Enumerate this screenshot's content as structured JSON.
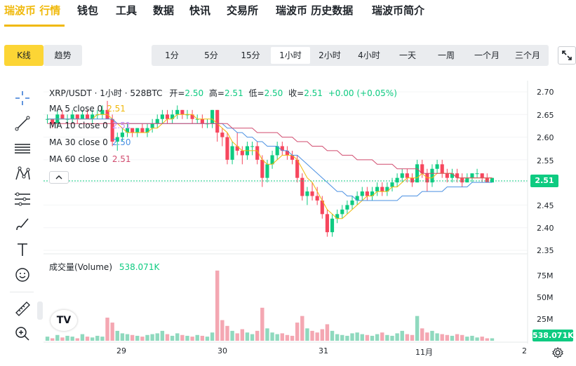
{
  "nav": {
    "items": [
      "瑞波币 行情",
      "钱包",
      "工具",
      "数据",
      "快讯",
      "交易所",
      "瑞波币 历史数据",
      "瑞波币简介"
    ],
    "active_index": 0,
    "accent": "#f0b90b"
  },
  "chart_type_tabs": [
    "K线",
    "趋势"
  ],
  "active_chart_type": "K线",
  "intervals": [
    "1分",
    "5分",
    "15分",
    "1小时",
    "2小时",
    "4小时",
    "一天",
    "一周",
    "一个月",
    "三个月"
  ],
  "active_interval": "1小时",
  "toolbar": {
    "icons": [
      "crosshair-icon",
      "trend-line-icon",
      "horizontal-lines-icon",
      "pattern-icon",
      "fib-icon",
      "brush-icon",
      "text-icon",
      "emoji-icon",
      "ruler-icon",
      "zoom-in-icon"
    ]
  },
  "header": {
    "symbol": "XRP/USDT · 1小时 · 528BTC",
    "open_label": "开=",
    "open": "2.50",
    "high_label": "高=",
    "high": "2.51",
    "low_label": "低=",
    "low": "2.50",
    "close_label": "收=",
    "close": "2.51",
    "change": "+0.00 (+0.05%)"
  },
  "ma": [
    {
      "label": "MA 5 close 0",
      "value": "2.51",
      "color": "#f0b90b"
    },
    {
      "label": "MA 10 close 0",
      "value": "2.51",
      "color": "#c58cf8"
    },
    {
      "label": "MA 30 close 0",
      "value": "2.50",
      "color": "#4a90e2"
    },
    {
      "label": "MA 60 close 0",
      "value": "2.51",
      "color": "#d14b6e"
    }
  ],
  "price_axis": [
    "2.70",
    "2.65",
    "2.60",
    "2.55",
    "2.50",
    "2.45",
    "2.40",
    "2.35"
  ],
  "last_price": "2.51",
  "volume": {
    "title": "成交量(Volume)",
    "value": "538.071K",
    "axis": [
      "75M",
      "50M",
      "25M"
    ],
    "tag": "538.071K"
  },
  "time_axis": [
    "29",
    "30",
    "31",
    "11月",
    "2"
  ],
  "tv_logo": "TV",
  "colors": {
    "up": "#0ecb81",
    "down": "#f6465d",
    "up_vol": "#8fd9be",
    "down_vol": "#f4a7b2"
  },
  "chart_data": {
    "type": "candlestick",
    "interval": "1小时",
    "ylim": [
      2.35,
      2.7
    ],
    "x_ticks": [
      "29",
      "30",
      "31",
      "11月",
      "2"
    ],
    "candles": [
      [
        2.64,
        2.65,
        2.63,
        2.64
      ],
      [
        2.64,
        2.64,
        2.62,
        2.63
      ],
      [
        2.63,
        2.66,
        2.62,
        2.65
      ],
      [
        2.65,
        2.66,
        2.64,
        2.64
      ],
      [
        2.64,
        2.65,
        2.63,
        2.64
      ],
      [
        2.64,
        2.66,
        2.63,
        2.65
      ],
      [
        2.65,
        2.65,
        2.63,
        2.64
      ],
      [
        2.64,
        2.66,
        2.64,
        2.65
      ],
      [
        2.65,
        2.66,
        2.64,
        2.64
      ],
      [
        2.64,
        2.66,
        2.63,
        2.65
      ],
      [
        2.65,
        2.66,
        2.64,
        2.65
      ],
      [
        2.65,
        2.67,
        2.64,
        2.66
      ],
      [
        2.66,
        2.68,
        2.64,
        2.64
      ],
      [
        2.64,
        2.65,
        2.58,
        2.59
      ],
      [
        2.59,
        2.61,
        2.57,
        2.6
      ],
      [
        2.6,
        2.62,
        2.59,
        2.61
      ],
      [
        2.61,
        2.63,
        2.6,
        2.62
      ],
      [
        2.62,
        2.62,
        2.6,
        2.61
      ],
      [
        2.61,
        2.62,
        2.6,
        2.62
      ],
      [
        2.62,
        2.63,
        2.61,
        2.61
      ],
      [
        2.61,
        2.63,
        2.6,
        2.62
      ],
      [
        2.62,
        2.64,
        2.61,
        2.63
      ],
      [
        2.63,
        2.65,
        2.62,
        2.64
      ],
      [
        2.64,
        2.66,
        2.63,
        2.65
      ],
      [
        2.65,
        2.66,
        2.63,
        2.64
      ],
      [
        2.64,
        2.66,
        2.63,
        2.65
      ],
      [
        2.65,
        2.67,
        2.64,
        2.66
      ],
      [
        2.66,
        2.66,
        2.64,
        2.65
      ],
      [
        2.65,
        2.66,
        2.64,
        2.65
      ],
      [
        2.65,
        2.66,
        2.63,
        2.64
      ],
      [
        2.64,
        2.65,
        2.63,
        2.64
      ],
      [
        2.64,
        2.65,
        2.62,
        2.63
      ],
      [
        2.63,
        2.64,
        2.62,
        2.63
      ],
      [
        2.63,
        2.66,
        2.62,
        2.66
      ],
      [
        2.66,
        2.66,
        2.59,
        2.61
      ],
      [
        2.61,
        2.62,
        2.58,
        2.6
      ],
      [
        2.6,
        2.61,
        2.54,
        2.55
      ],
      [
        2.55,
        2.59,
        2.54,
        2.58
      ],
      [
        2.58,
        2.61,
        2.56,
        2.57
      ],
      [
        2.57,
        2.58,
        2.54,
        2.56
      ],
      [
        2.56,
        2.59,
        2.55,
        2.58
      ],
      [
        2.58,
        2.59,
        2.56,
        2.58
      ],
      [
        2.58,
        2.59,
        2.54,
        2.55
      ],
      [
        2.55,
        2.56,
        2.49,
        2.51
      ],
      [
        2.51,
        2.55,
        2.5,
        2.54
      ],
      [
        2.54,
        2.57,
        2.53,
        2.56
      ],
      [
        2.56,
        2.59,
        2.55,
        2.58
      ],
      [
        2.58,
        2.59,
        2.56,
        2.57
      ],
      [
        2.57,
        2.58,
        2.55,
        2.56
      ],
      [
        2.56,
        2.57,
        2.54,
        2.55
      ],
      [
        2.55,
        2.56,
        2.5,
        2.51
      ],
      [
        2.51,
        2.52,
        2.46,
        2.47
      ],
      [
        2.47,
        2.49,
        2.45,
        2.48
      ],
      [
        2.48,
        2.5,
        2.46,
        2.47
      ],
      [
        2.47,
        2.49,
        2.45,
        2.46
      ],
      [
        2.46,
        2.47,
        2.42,
        2.43
      ],
      [
        2.43,
        2.44,
        2.38,
        2.39
      ],
      [
        2.39,
        2.43,
        2.38,
        2.42
      ],
      [
        2.42,
        2.44,
        2.41,
        2.43
      ],
      [
        2.43,
        2.45,
        2.42,
        2.44
      ],
      [
        2.44,
        2.46,
        2.43,
        2.45
      ],
      [
        2.45,
        2.47,
        2.44,
        2.46
      ],
      [
        2.46,
        2.48,
        2.45,
        2.47
      ],
      [
        2.47,
        2.49,
        2.46,
        2.48
      ],
      [
        2.48,
        2.49,
        2.46,
        2.47
      ],
      [
        2.47,
        2.49,
        2.46,
        2.48
      ],
      [
        2.48,
        2.5,
        2.47,
        2.49
      ],
      [
        2.49,
        2.5,
        2.47,
        2.48
      ],
      [
        2.48,
        2.5,
        2.47,
        2.49
      ],
      [
        2.49,
        2.51,
        2.48,
        2.5
      ],
      [
        2.5,
        2.52,
        2.49,
        2.51
      ],
      [
        2.51,
        2.53,
        2.5,
        2.52
      ],
      [
        2.52,
        2.53,
        2.5,
        2.51
      ],
      [
        2.51,
        2.52,
        2.49,
        2.5
      ],
      [
        2.5,
        2.55,
        2.5,
        2.54
      ],
      [
        2.54,
        2.55,
        2.51,
        2.52
      ],
      [
        2.52,
        2.53,
        2.48,
        2.5
      ],
      [
        2.5,
        2.54,
        2.49,
        2.53
      ],
      [
        2.53,
        2.55,
        2.52,
        2.54
      ],
      [
        2.54,
        2.55,
        2.51,
        2.52
      ],
      [
        2.52,
        2.53,
        2.5,
        2.51
      ],
      [
        2.51,
        2.53,
        2.5,
        2.52
      ],
      [
        2.52,
        2.53,
        2.5,
        2.51
      ],
      [
        2.51,
        2.52,
        2.49,
        2.5
      ],
      [
        2.5,
        2.52,
        2.5,
        2.51
      ],
      [
        2.51,
        2.52,
        2.5,
        2.52
      ],
      [
        2.52,
        2.53,
        2.51,
        2.52
      ],
      [
        2.52,
        2.52,
        2.5,
        2.51
      ],
      [
        2.51,
        2.52,
        2.5,
        2.5
      ],
      [
        2.5,
        2.51,
        2.5,
        2.51
      ]
    ],
    "volume": [
      5,
      3,
      7,
      4,
      6,
      5,
      3,
      8,
      5,
      4,
      6,
      5,
      28,
      22,
      12,
      9,
      8,
      7,
      6,
      5,
      7,
      8,
      9,
      12,
      8,
      6,
      9,
      7,
      6,
      5,
      7,
      6,
      5,
      10,
      85,
      25,
      18,
      12,
      9,
      14,
      10,
      8,
      12,
      40,
      15,
      10,
      8,
      9,
      7,
      6,
      22,
      30,
      15,
      12,
      10,
      14,
      20,
      12,
      8,
      7,
      6,
      9,
      10,
      8,
      7,
      6,
      8,
      10,
      7,
      6,
      9,
      12,
      8,
      7,
      30,
      15,
      10,
      12,
      9,
      8,
      7,
      6,
      8,
      7,
      5,
      6,
      4,
      5,
      3,
      3
    ],
    "ma": {
      "ma5": [
        2.64,
        2.64,
        2.64,
        2.64,
        2.64,
        2.64,
        2.64,
        2.64,
        2.64,
        2.64,
        2.65,
        2.65,
        2.65,
        2.64,
        2.63,
        2.62,
        2.61,
        2.61,
        2.61,
        2.61,
        2.61,
        2.62,
        2.62,
        2.63,
        2.64,
        2.64,
        2.65,
        2.65,
        2.65,
        2.65,
        2.64,
        2.64,
        2.64,
        2.64,
        2.63,
        2.62,
        2.61,
        2.59,
        2.58,
        2.57,
        2.57,
        2.57,
        2.57,
        2.55,
        2.54,
        2.54,
        2.55,
        2.56,
        2.56,
        2.56,
        2.55,
        2.53,
        2.51,
        2.5,
        2.48,
        2.46,
        2.44,
        2.43,
        2.42,
        2.42,
        2.43,
        2.44,
        2.45,
        2.46,
        2.47,
        2.47,
        2.48,
        2.48,
        2.48,
        2.49,
        2.49,
        2.5,
        2.51,
        2.51,
        2.51,
        2.52,
        2.51,
        2.51,
        2.52,
        2.52,
        2.52,
        2.52,
        2.51,
        2.51,
        2.51,
        2.51,
        2.51,
        2.51,
        2.51,
        2.51
      ],
      "ma30": [
        2.64,
        2.64,
        2.64,
        2.64,
        2.64,
        2.64,
        2.64,
        2.64,
        2.64,
        2.64,
        2.64,
        2.64,
        2.64,
        2.64,
        2.63,
        2.63,
        2.63,
        2.63,
        2.63,
        2.63,
        2.63,
        2.63,
        2.63,
        2.63,
        2.63,
        2.63,
        2.63,
        2.63,
        2.63,
        2.63,
        2.63,
        2.63,
        2.63,
        2.63,
        2.63,
        2.63,
        2.62,
        2.62,
        2.61,
        2.61,
        2.6,
        2.6,
        2.59,
        2.59,
        2.58,
        2.58,
        2.58,
        2.57,
        2.57,
        2.56,
        2.56,
        2.55,
        2.54,
        2.53,
        2.52,
        2.51,
        2.5,
        2.49,
        2.48,
        2.48,
        2.47,
        2.47,
        2.46,
        2.46,
        2.46,
        2.46,
        2.46,
        2.46,
        2.46,
        2.46,
        2.46,
        2.47,
        2.47,
        2.47,
        2.47,
        2.48,
        2.48,
        2.48,
        2.48,
        2.48,
        2.49,
        2.49,
        2.49,
        2.49,
        2.49,
        2.5,
        2.5,
        2.5,
        2.5,
        2.5
      ],
      "ma60": [
        2.63,
        2.63,
        2.63,
        2.63,
        2.63,
        2.63,
        2.63,
        2.63,
        2.63,
        2.63,
        2.63,
        2.63,
        2.63,
        2.63,
        2.63,
        2.63,
        2.63,
        2.63,
        2.63,
        2.63,
        2.63,
        2.63,
        2.63,
        2.63,
        2.63,
        2.63,
        2.63,
        2.63,
        2.63,
        2.63,
        2.63,
        2.63,
        2.63,
        2.63,
        2.63,
        2.63,
        2.63,
        2.62,
        2.62,
        2.62,
        2.62,
        2.62,
        2.61,
        2.61,
        2.61,
        2.61,
        2.61,
        2.6,
        2.6,
        2.6,
        2.59,
        2.59,
        2.59,
        2.58,
        2.58,
        2.58,
        2.57,
        2.57,
        2.57,
        2.56,
        2.56,
        2.56,
        2.55,
        2.55,
        2.55,
        2.55,
        2.54,
        2.54,
        2.54,
        2.54,
        2.53,
        2.53,
        2.53,
        2.53,
        2.53,
        2.52,
        2.52,
        2.52,
        2.52,
        2.52,
        2.52,
        2.52,
        2.51,
        2.51,
        2.51,
        2.51,
        2.51,
        2.51,
        2.51,
        2.51
      ]
    }
  }
}
